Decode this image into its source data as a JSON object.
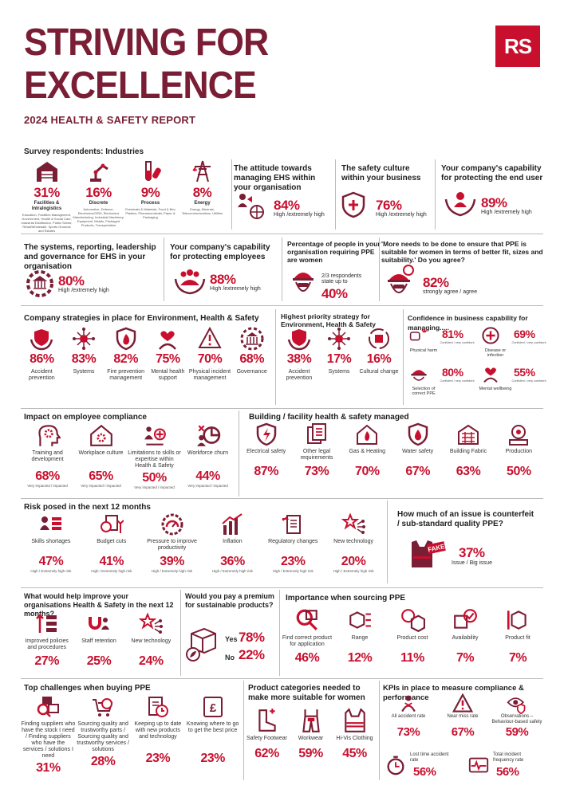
{
  "header": {
    "title_line1": "STRIVING FOR",
    "title_line2": "EXCELLENCE",
    "subtitle": "2024 HEALTH & SAFETY REPORT",
    "logo": "RS"
  },
  "colors": {
    "brand": "#7a1e35",
    "accent": "#c8102e"
  },
  "survey": {
    "title": "Survey respondents: Industries",
    "items": [
      {
        "pct": "31%",
        "name": "Facilities & Intralogistics",
        "desc": "Education, Facilities Management, Government, Health & Social Care, Industrial Distribution, Public Sector, Retail/Wholesale, Sports Grounds and Estates",
        "icon": "warehouse-icon"
      },
      {
        "pct": "16%",
        "name": "Discrete",
        "desc": "Automotive, Defence, Electronics/OEM, Electronics Manufacturing, Industrial Machinery, Equipment, Metals, Packaged Products, Transportation",
        "icon": "robot-arm-icon"
      },
      {
        "pct": "9%",
        "name": "Process",
        "desc": "Chemicals & Materials, Food & Bev, Plastics, Pharmaceuticals, Paper & Packaging",
        "icon": "test-tube-icon"
      },
      {
        "pct": "8%",
        "name": "Energy",
        "desc": "Energy, Minerals, Telecommunications, Utilities",
        "icon": "pylon-icon"
      }
    ]
  },
  "attitude": {
    "title": "The attitude towards managing EHS within your organisation",
    "pct": "84%",
    "label": "High /extremely high"
  },
  "culture": {
    "title": "The safety culture within your business",
    "pct": "76%",
    "label": "High /extremely high"
  },
  "enduser": {
    "title": "Your company's capability for protecting the end user",
    "pct": "89%",
    "label": "High /extremely high"
  },
  "systems": {
    "title": "The systems, reporting, leadership and governance for EHS in your organisation",
    "pct": "80%",
    "label": "High /extremely high"
  },
  "employees": {
    "title": "Your company's capability for protecting employees",
    "pct": "88%",
    "label": "High /extremely high"
  },
  "women": {
    "title": "Percentage of people in your organisation requiring PPE are women",
    "note": "2/3 respondents state up to",
    "pct": "40%"
  },
  "ppewomen": {
    "title": "'More needs to be done to ensure that PPE is suitable for women in terms of better fit, sizes and suitability.' Do you agree?",
    "pct": "82%",
    "label": "strongly agree / agree"
  },
  "strategies": {
    "title": "Company strategies in place for Environment, Health & Safety",
    "items": [
      {
        "pct": "86%",
        "label": "Accident prevention",
        "icon": "shield-hands-icon"
      },
      {
        "pct": "83%",
        "label": "Systems",
        "icon": "network-icon"
      },
      {
        "pct": "82%",
        "label": "Fire prevention management",
        "icon": "fire-shield-icon"
      },
      {
        "pct": "75%",
        "label": "Mental health support",
        "icon": "heart-person-icon"
      },
      {
        "pct": "70%",
        "label": "Physical incident management",
        "icon": "warning-person-icon"
      },
      {
        "pct": "68%",
        "label": "Governance",
        "icon": "governance-icon"
      }
    ]
  },
  "priority": {
    "title": "Highest priority strategy for Environment, Health & Safety",
    "items": [
      {
        "pct": "38%",
        "label": "Accident prevention",
        "icon": "shield-hands-icon"
      },
      {
        "pct": "17%",
        "label": "Systems",
        "icon": "network-icon"
      },
      {
        "pct": "16%",
        "label": "Cultural change",
        "icon": "cycle-building-icon"
      }
    ]
  },
  "confidence": {
    "title": "Confidence in business capability for managing.....",
    "items": [
      {
        "pct": "81%",
        "label": "Physical harm",
        "note": "Confident / very confident",
        "icon": "hand-injury-icon"
      },
      {
        "pct": "69%",
        "label": "Disease or infection",
        "note": "Confident / very confident",
        "icon": "plus-circle-icon"
      },
      {
        "pct": "80%",
        "label": "Selection of correct PPE",
        "note": "Confident / very confident",
        "icon": "hardhat-icon"
      },
      {
        "pct": "55%",
        "label": "Mental wellbeing",
        "note": "Confident / very confident",
        "icon": "heart-person-icon"
      }
    ]
  },
  "compliance": {
    "title": "Impact on employee compliance",
    "items": [
      {
        "pct": "68%",
        "label": "Training and development",
        "note": "Very impacted / impacted",
        "icon": "head-gear-icon"
      },
      {
        "pct": "65%",
        "label": "Workplace culture",
        "note": "Very impacted / impacted",
        "icon": "house-gear-icon"
      },
      {
        "pct": "50%",
        "label": "Limitations to skills or expertise within Health & Safety",
        "note": "Very impacted / impacted",
        "icon": "people-plus-icon"
      },
      {
        "pct": "44%",
        "label": "Workforce churn",
        "note": "Very impacted / impacted",
        "icon": "pie-people-icon"
      }
    ]
  },
  "building": {
    "title": "Building / facility health & safety managed",
    "items": [
      {
        "pct": "87%",
        "label": "Electrical safety",
        "icon": "bolt-shield-icon"
      },
      {
        "pct": "73%",
        "label": "Other legal requirements",
        "icon": "documents-icon"
      },
      {
        "pct": "70%",
        "label": "Gas & Heating",
        "icon": "flame-house-icon"
      },
      {
        "pct": "67%",
        "label": "Water safety",
        "icon": "water-shield-icon"
      },
      {
        "pct": "63%",
        "label": "Building Fabric",
        "icon": "building-icon"
      },
      {
        "pct": "50%",
        "label": "Production",
        "icon": "production-icon"
      }
    ]
  },
  "risk": {
    "title": "Risk posed in the next 12 months",
    "items": [
      {
        "pct": "47%",
        "label": "Skills shortages",
        "note": "High / Extremely high risk",
        "icon": "people-bars-icon"
      },
      {
        "pct": "41%",
        "label": "Budget cuts",
        "note": "High / Extremely high risk",
        "icon": "money-down-icon"
      },
      {
        "pct": "39%",
        "label": "Pressure to improve productivity",
        "note": "High / Extremely high risk",
        "icon": "gauge-gear-icon"
      },
      {
        "pct": "36%",
        "label": "Inflation",
        "note": "High / Extremely high risk",
        "icon": "bar-chart-icon"
      },
      {
        "pct": "23%",
        "label": "Regulatory changes",
        "note": "High / Extremely high risk",
        "icon": "document-arrows-icon"
      },
      {
        "pct": "20%",
        "label": "New technology",
        "note": "High / Extremely high risk",
        "icon": "star-network-icon"
      }
    ]
  },
  "counterfeit": {
    "title": "How much of an issue is counterfeit / sub-standard quality PPE?",
    "pct": "37%",
    "label": "Issue / Big issue",
    "stamp": "FAKE"
  },
  "improve": {
    "title": "What would help improve your organisations Health & Safety in the next 12 months?",
    "items": [
      {
        "pct": "27%",
        "label": "Improved policies and procedures",
        "icon": "sort-icon"
      },
      {
        "pct": "25%",
        "label": "Staff retention",
        "icon": "magnet-people-icon"
      },
      {
        "pct": "24%",
        "label": "New technology",
        "icon": "star-network-icon"
      }
    ]
  },
  "premium": {
    "title": "Would you pay a premium for sustainable products?",
    "yes_label": "Yes",
    "yes": "78%",
    "no_label": "No",
    "no": "22%"
  },
  "sourcing": {
    "title": "Importance when sourcing PPE",
    "items": [
      {
        "pct": "46%",
        "label": "Find correct product for application",
        "icon": "search-box-icon"
      },
      {
        "pct": "12%",
        "label": "Range",
        "icon": "cubes-icon"
      },
      {
        "pct": "11%",
        "label": "Product cost",
        "icon": "price-cube-icon"
      },
      {
        "pct": "7%",
        "label": "Availability",
        "icon": "check-box-icon"
      },
      {
        "pct": "7%",
        "label": "Product fit",
        "icon": "cube-bracket-icon"
      }
    ]
  },
  "challenges": {
    "title": "Top challenges when buying PPE",
    "items": [
      {
        "pct": "31%",
        "label": "Finding suppliers who have the stock I need / Finding suppliers who have the services / solutions I need",
        "icon": "search-boxes-icon"
      },
      {
        "pct": "28%",
        "label": "Sourcing quality and trustworthy parts / Sourcing quality and trustworthy services / solutions",
        "icon": "cart-badge-icon"
      },
      {
        "pct": "23%",
        "label": "Keeping up to date with new products and technology",
        "icon": "document-clock-icon"
      },
      {
        "pct": "23%",
        "label": "Knowing where to go to get the best price",
        "icon": "pound-document-icon"
      }
    ]
  },
  "categories": {
    "title": "Product categories needed to make more suitable for women",
    "items": [
      {
        "pct": "62%",
        "label": "Safety Footwear",
        "icon": "boot-icon"
      },
      {
        "pct": "59%",
        "label": "Workwear",
        "icon": "overalls-icon"
      },
      {
        "pct": "45%",
        "label": "Hi-Vis Clothing",
        "icon": "vest-icon"
      }
    ]
  },
  "kpis": {
    "title": "KPIs in place to measure compliance & performance",
    "items": [
      {
        "pct": "73%",
        "label": "All accident rate",
        "icon": "injured-person-icon"
      },
      {
        "pct": "67%",
        "label": "Near miss rate",
        "icon": "warning-icon"
      },
      {
        "pct": "59%",
        "label": "Observations – Behaviour-based safety",
        "icon": "eye-shield-icon"
      },
      {
        "pct": "56%",
        "label": "Lost time accident rate",
        "icon": "stopwatch-icon"
      },
      {
        "pct": "56%",
        "label": "Total incident frequency rate",
        "icon": "heartbeat-monitor-icon"
      }
    ]
  },
  "chart_data": {
    "type": "table",
    "title": "2024 HEALTH & SAFETY REPORT"
  }
}
